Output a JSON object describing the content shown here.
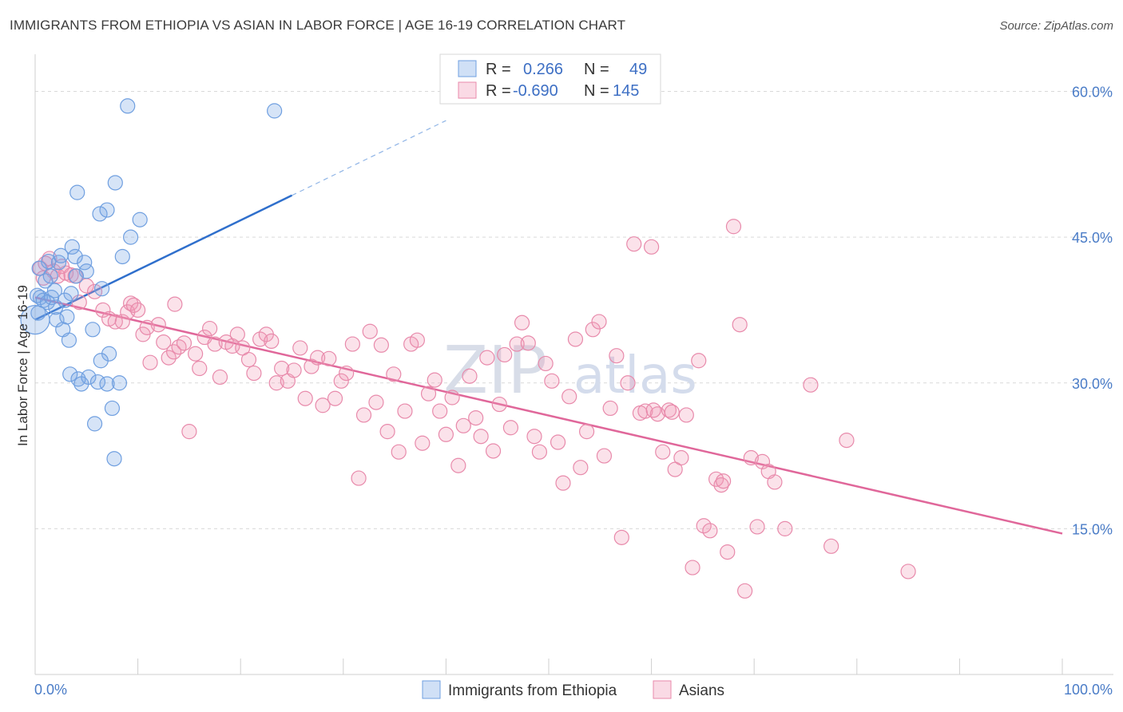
{
  "title": "IMMIGRANTS FROM ETHIOPIA VS ASIAN IN LABOR FORCE | AGE 16-19 CORRELATION CHART",
  "source": "Source: ZipAtlas.com",
  "watermark": {
    "zip": "ZIP",
    "atlas": "atlas"
  },
  "legend": {
    "rows": [
      {
        "r_label": "R =",
        "r_value": "0.266",
        "n_label": "N =",
        "n_value": "49"
      },
      {
        "r_label": "R =",
        "r_value": "-0.690",
        "n_label": "N =",
        "n_value": "145"
      }
    ]
  },
  "colors": {
    "blue": "#6f9fe0",
    "blue_fill": "rgba(120,165,230,0.30)",
    "blue_line": "#2f6fcc",
    "pink": "#e88aab",
    "pink_fill": "rgba(240,150,180,0.28)",
    "pink_line": "#e0679a",
    "grid": "#d9d9d9",
    "tick_text": "#4a7cc7"
  },
  "chart_data": {
    "type": "scatter",
    "title": "IMMIGRANTS FROM ETHIOPIA VS ASIAN IN LABOR FORCE | AGE 16-19 CORRELATION CHART",
    "xlabel": "",
    "ylabel": "In Labor Force | Age 16-19",
    "xlim": [
      0,
      100
    ],
    "ylim": [
      0,
      63
    ],
    "x_tick_labels": [
      "0.0%",
      "100.0%"
    ],
    "y_ticks": [
      15,
      30,
      45,
      60
    ],
    "y_tick_labels": [
      "15.0%",
      "30.0%",
      "45.0%",
      "60.0%"
    ],
    "series": [
      {
        "name": "Immigrants from Ethiopia",
        "trend": {
          "x0": 0,
          "y0": 36.5,
          "x1": 25,
          "y1": 49.3,
          "dash_to_x": 40,
          "dash_to_y": 57.0
        },
        "points": [
          [
            0.2,
            39.0
          ],
          [
            0.3,
            37.2
          ],
          [
            0.4,
            41.8
          ],
          [
            0.5,
            38.8
          ],
          [
            0.8,
            38.5
          ],
          [
            1.0,
            40.5
          ],
          [
            1.2,
            38.3
          ],
          [
            1.3,
            42.5
          ],
          [
            1.5,
            41.0
          ],
          [
            1.6,
            38.8
          ],
          [
            2.0,
            37.8
          ],
          [
            2.1,
            36.5
          ],
          [
            2.3,
            42.4
          ],
          [
            2.5,
            43.1
          ],
          [
            2.7,
            35.5
          ],
          [
            2.9,
            38.5
          ],
          [
            3.1,
            36.8
          ],
          [
            3.3,
            34.4
          ],
          [
            3.4,
            30.9
          ],
          [
            3.5,
            39.2
          ],
          [
            3.6,
            44.0
          ],
          [
            3.9,
            43.0
          ],
          [
            4.2,
            30.4
          ],
          [
            4.5,
            29.9
          ],
          [
            4.8,
            42.4
          ],
          [
            5.0,
            41.5
          ],
          [
            5.2,
            30.6
          ],
          [
            5.6,
            35.5
          ],
          [
            5.8,
            25.8
          ],
          [
            6.1,
            30.1
          ],
          [
            6.5,
            39.7
          ],
          [
            7.0,
            29.9
          ],
          [
            7.2,
            33.0
          ],
          [
            7.5,
            27.4
          ],
          [
            7.7,
            22.2
          ],
          [
            8.2,
            30.0
          ],
          [
            8.5,
            43.0
          ],
          [
            9.0,
            58.5
          ],
          [
            10.2,
            46.8
          ],
          [
            6.3,
            47.4
          ],
          [
            7.0,
            47.8
          ],
          [
            7.8,
            50.6
          ],
          [
            4.1,
            49.6
          ],
          [
            23.3,
            58.0
          ],
          [
            9.3,
            45.0
          ],
          [
            6.4,
            32.3
          ],
          [
            4.0,
            41.0
          ],
          [
            1.9,
            39.5
          ],
          [
            0.0,
            36.5
          ]
        ],
        "radii": [
          9,
          9,
          9,
          9,
          9,
          9,
          9,
          9,
          9,
          9,
          9,
          9,
          9,
          9,
          9,
          9,
          9,
          9,
          9,
          9,
          9,
          9,
          9,
          9,
          9,
          9,
          9,
          9,
          9,
          9,
          9,
          9,
          9,
          9,
          9,
          9,
          9,
          9,
          9,
          9,
          9,
          9,
          9,
          9,
          9,
          9,
          9,
          9,
          18
        ]
      },
      {
        "name": "Asians",
        "trend": {
          "x0": 0,
          "y0": 38.8,
          "x1": 100,
          "y1": 14.5
        },
        "points": [
          [
            0.5,
            41.8
          ],
          [
            0.8,
            40.8
          ],
          [
            1.0,
            42.3
          ],
          [
            1.4,
            42.8
          ],
          [
            1.8,
            41.5
          ],
          [
            2.2,
            41.0
          ],
          [
            2.6,
            42.0
          ],
          [
            3.0,
            41.3
          ],
          [
            3.5,
            41.1
          ],
          [
            3.9,
            41.0
          ],
          [
            4.3,
            38.3
          ],
          [
            5.0,
            40.0
          ],
          [
            5.8,
            39.4
          ],
          [
            6.6,
            37.5
          ],
          [
            7.2,
            36.6
          ],
          [
            7.8,
            36.3
          ],
          [
            8.5,
            36.3
          ],
          [
            9.0,
            37.3
          ],
          [
            9.3,
            38.2
          ],
          [
            9.6,
            38.0
          ],
          [
            10.0,
            37.5
          ],
          [
            10.5,
            35.0
          ],
          [
            10.9,
            35.7
          ],
          [
            11.2,
            32.1
          ],
          [
            12.0,
            36.0
          ],
          [
            12.5,
            34.2
          ],
          [
            13.0,
            32.6
          ],
          [
            13.5,
            33.2
          ],
          [
            14.0,
            33.7
          ],
          [
            14.5,
            34.1
          ],
          [
            15.0,
            25.0
          ],
          [
            15.6,
            33.0
          ],
          [
            16.0,
            31.5
          ],
          [
            16.5,
            34.7
          ],
          [
            17.0,
            35.6
          ],
          [
            17.5,
            34.0
          ],
          [
            18.0,
            30.6
          ],
          [
            18.6,
            34.2
          ],
          [
            19.2,
            33.8
          ],
          [
            19.7,
            35.0
          ],
          [
            20.2,
            33.6
          ],
          [
            20.8,
            32.4
          ],
          [
            21.3,
            31.0
          ],
          [
            21.9,
            34.5
          ],
          [
            22.5,
            35.0
          ],
          [
            23.0,
            34.3
          ],
          [
            23.5,
            30.0
          ],
          [
            24.0,
            31.5
          ],
          [
            24.6,
            30.2
          ],
          [
            25.2,
            31.3
          ],
          [
            25.8,
            33.6
          ],
          [
            26.3,
            28.4
          ],
          [
            26.9,
            31.7
          ],
          [
            27.5,
            32.6
          ],
          [
            28.0,
            27.7
          ],
          [
            28.6,
            32.5
          ],
          [
            29.2,
            28.4
          ],
          [
            29.8,
            30.2
          ],
          [
            30.3,
            31.0
          ],
          [
            30.9,
            34.0
          ],
          [
            31.5,
            20.2
          ],
          [
            32.0,
            26.7
          ],
          [
            32.6,
            35.3
          ],
          [
            33.2,
            28.0
          ],
          [
            33.7,
            33.9
          ],
          [
            34.3,
            25.0
          ],
          [
            34.9,
            30.9
          ],
          [
            35.4,
            22.9
          ],
          [
            36.0,
            27.1
          ],
          [
            36.6,
            34.0
          ],
          [
            37.2,
            34.4
          ],
          [
            37.7,
            23.8
          ],
          [
            38.3,
            28.9
          ],
          [
            38.9,
            30.3
          ],
          [
            39.4,
            27.1
          ],
          [
            40.0,
            24.7
          ],
          [
            40.6,
            28.5
          ],
          [
            41.2,
            21.5
          ],
          [
            41.7,
            25.6
          ],
          [
            42.3,
            30.7
          ],
          [
            42.9,
            26.4
          ],
          [
            43.4,
            24.5
          ],
          [
            44.0,
            32.6
          ],
          [
            44.6,
            23.0
          ],
          [
            45.2,
            27.8
          ],
          [
            45.7,
            32.9
          ],
          [
            46.3,
            25.4
          ],
          [
            46.9,
            34.0
          ],
          [
            47.4,
            36.2
          ],
          [
            48.0,
            34.1
          ],
          [
            48.6,
            24.5
          ],
          [
            49.1,
            22.9
          ],
          [
            49.7,
            32.0
          ],
          [
            50.3,
            30.2
          ],
          [
            50.9,
            23.9
          ],
          [
            51.4,
            19.7
          ],
          [
            52.0,
            28.6
          ],
          [
            52.6,
            34.5
          ],
          [
            53.1,
            21.3
          ],
          [
            53.7,
            25.0
          ],
          [
            54.3,
            35.5
          ],
          [
            54.9,
            36.3
          ],
          [
            55.4,
            22.5
          ],
          [
            56.0,
            27.4
          ],
          [
            56.6,
            32.8
          ],
          [
            57.1,
            14.1
          ],
          [
            57.7,
            30.0
          ],
          [
            58.3,
            44.3
          ],
          [
            58.9,
            26.9
          ],
          [
            59.4,
            27.1
          ],
          [
            60.0,
            44.0
          ],
          [
            60.6,
            26.8
          ],
          [
            61.1,
            22.9
          ],
          [
            61.7,
            27.2
          ],
          [
            62.3,
            21.1
          ],
          [
            62.9,
            22.3
          ],
          [
            63.4,
            26.7
          ],
          [
            64.0,
            11.0
          ],
          [
            64.6,
            32.3
          ],
          [
            65.1,
            15.3
          ],
          [
            65.7,
            14.8
          ],
          [
            66.3,
            20.1
          ],
          [
            66.8,
            19.5
          ],
          [
            67.4,
            12.6
          ],
          [
            68.0,
            46.1
          ],
          [
            68.6,
            36.0
          ],
          [
            69.1,
            8.6
          ],
          [
            69.7,
            22.3
          ],
          [
            70.3,
            15.2
          ],
          [
            70.8,
            21.9
          ],
          [
            71.4,
            20.9
          ],
          [
            72.0,
            19.8
          ],
          [
            73.0,
            15.0
          ],
          [
            75.5,
            29.8
          ],
          [
            77.5,
            13.2
          ],
          [
            79.0,
            24.1
          ],
          [
            85.0,
            10.6
          ],
          [
            67.0,
            19.9
          ],
          [
            62.0,
            27.0
          ],
          [
            60.2,
            27.2
          ],
          [
            13.6,
            38.1
          ]
        ]
      }
    ],
    "legend_entries": [
      "Immigrants from Ethiopia",
      "Asians"
    ]
  }
}
